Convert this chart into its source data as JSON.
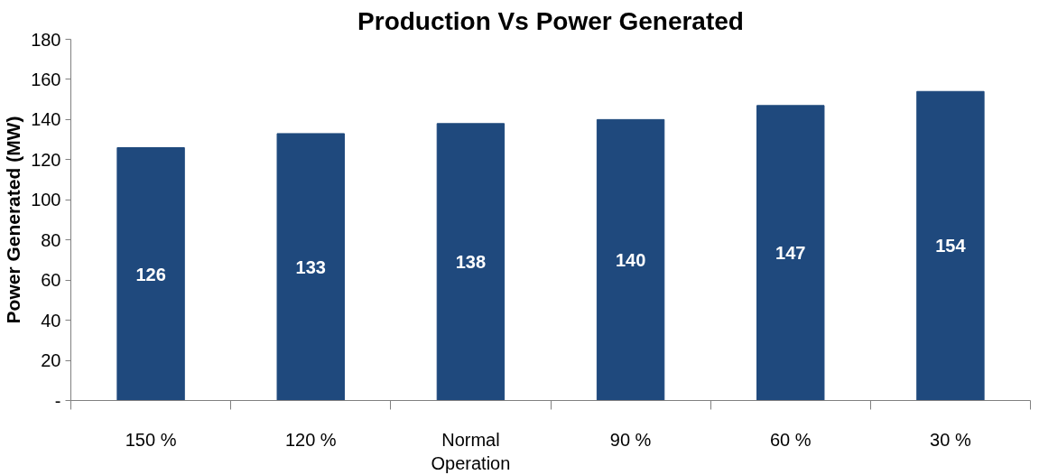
{
  "chart_data": {
    "type": "bar",
    "title": "Production Vs Power Generated",
    "ylabel": "Power Generated (MW)",
    "categories": [
      "150 %",
      "120 %",
      "Normal Operation",
      "90 %",
      "60 %",
      "30 %"
    ],
    "values": [
      126,
      133,
      138,
      140,
      147,
      154
    ],
    "color": "#1f497d",
    "ylim": [
      0,
      180
    ],
    "yticks": [
      {
        "value": 0,
        "label": "-"
      },
      20,
      40,
      60,
      80,
      100,
      120,
      140,
      160,
      180
    ],
    "grid": false,
    "data_labels": true
  }
}
